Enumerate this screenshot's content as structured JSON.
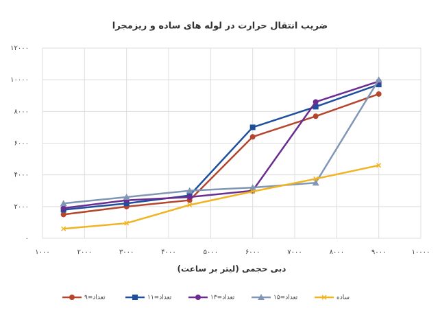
{
  "chart_data": {
    "type": "line",
    "title": "ضریب انتقال حرارت در لوله های ساده و ریزمجرا",
    "xlabel": "دبی حجمی (لیتر بر ساعت)",
    "x": [
      1500,
      3000,
      4500,
      6000,
      7500,
      9000
    ],
    "series": [
      {
        "name": "تعداد=۹",
        "color": "#b5462e",
        "marker": "circle",
        "values": [
          1500,
          2000,
          2400,
          6400,
          7700,
          9100
        ]
      },
      {
        "name": "تعداد=۱۱",
        "color": "#1f4e9c",
        "marker": "square",
        "values": [
          1800,
          2200,
          2700,
          7000,
          8300,
          9700
        ]
      },
      {
        "name": "تعداد=۱۳",
        "color": "#6a2c91",
        "marker": "circle",
        "values": [
          1900,
          2400,
          2600,
          3000,
          8600,
          9900
        ]
      },
      {
        "name": "تعداد=۱۵",
        "color": "#7f96b4",
        "marker": "triangle",
        "values": [
          2200,
          2600,
          3000,
          3200,
          3500,
          10000
        ]
      },
      {
        "name": "ساده",
        "color": "#f0b322",
        "marker": "cross",
        "values": [
          600,
          950,
          2100,
          2950,
          3750,
          4600
        ]
      }
    ],
    "xlim": [
      1000,
      10000
    ],
    "xticks": [
      {
        "value": 1000,
        "label": "۱۰۰۰"
      },
      {
        "value": 2000,
        "label": "۲۰۰۰"
      },
      {
        "value": 3000,
        "label": "۳۰۰۰"
      },
      {
        "value": 4000,
        "label": "۴۰۰۰"
      },
      {
        "value": 5000,
        "label": "۵۰۰۰"
      },
      {
        "value": 6000,
        "label": "۶۰۰۰"
      },
      {
        "value": 7000,
        "label": "۷۰۰۰"
      },
      {
        "value": 8000,
        "label": "۸۰۰۰"
      },
      {
        "value": 9000,
        "label": "۹۰۰۰"
      },
      {
        "value": 10000,
        "label": "۱۰۰۰۰"
      }
    ],
    "ylim": [
      0,
      12000
    ],
    "yticks": [
      {
        "value": 0,
        "label": "۰"
      },
      {
        "value": 2000,
        "label": "۲۰۰۰"
      },
      {
        "value": 4000,
        "label": "۴۰۰۰"
      },
      {
        "value": 6000,
        "label": "۶۰۰۰"
      },
      {
        "value": 8000,
        "label": "۸۰۰۰"
      },
      {
        "value": 10000,
        "label": "۱۰۰۰۰"
      },
      {
        "value": 12000,
        "label": "۱۲۰۰۰"
      }
    ],
    "grid": true,
    "legend": "bottom"
  }
}
